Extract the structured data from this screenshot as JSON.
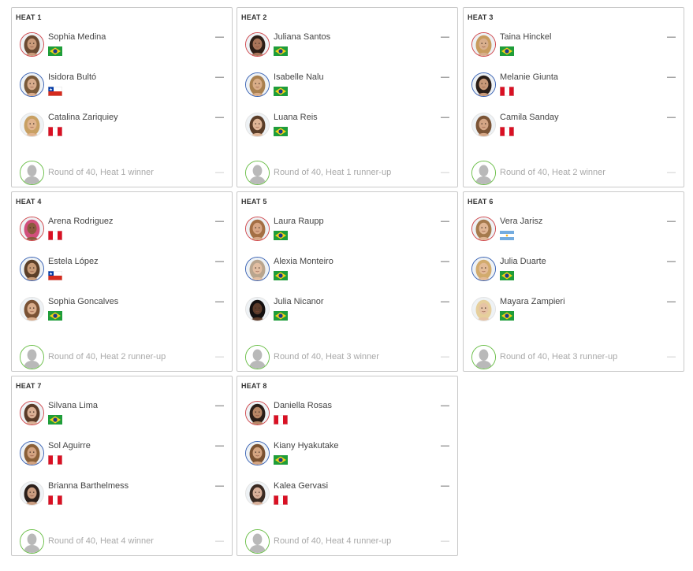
{
  "heats": [
    {
      "title": "HEAT 1",
      "athletes": [
        {
          "name": "Sophia Medina",
          "flag": "brazil-flag",
          "ring": "red",
          "score": "—",
          "skin": "#c99a7a",
          "hair": "#6b4a32"
        },
        {
          "name": "Isidora Bultó",
          "flag": "chile-flag",
          "ring": "blue",
          "score": "—",
          "skin": "#d7ab8c",
          "hair": "#7a5a3a"
        },
        {
          "name": "Catalina Zariquiey",
          "flag": "peru-flag",
          "ring": "white",
          "score": "—",
          "skin": "#e0b48e",
          "hair": "#c8a063"
        }
      ],
      "placeholder": {
        "name": "Round of 40, Heat 1 winner",
        "score": "—"
      }
    },
    {
      "title": "HEAT 2",
      "athletes": [
        {
          "name": "Juliana Santos",
          "flag": "brazil-flag",
          "ring": "red",
          "score": "—",
          "skin": "#a9755a",
          "hair": "#2d1e16"
        },
        {
          "name": "Isabelle Nalu",
          "flag": "brazil-flag",
          "ring": "blue",
          "score": "—",
          "skin": "#d9ad88",
          "hair": "#a9804f"
        },
        {
          "name": "Luana Reis",
          "flag": "brazil-flag",
          "ring": "white",
          "score": "—",
          "skin": "#deb597",
          "hair": "#5a3d28"
        }
      ],
      "placeholder": {
        "name": "Round of 40, Heat 1 runner-up",
        "score": "—"
      }
    },
    {
      "title": "HEAT 3",
      "athletes": [
        {
          "name": "Taina Hinckel",
          "flag": "brazil-flag",
          "ring": "red",
          "score": "—",
          "skin": "#d8ae8c",
          "hair": "#c89b5e"
        },
        {
          "name": "Melanie Giunta",
          "flag": "peru-flag",
          "ring": "blue",
          "score": "—",
          "skin": "#c79878",
          "hair": "#2a1e18"
        },
        {
          "name": "Camila Sanday",
          "flag": "peru-flag",
          "ring": "white",
          "score": "—",
          "skin": "#d3a585",
          "hair": "#7b5436"
        }
      ],
      "placeholder": {
        "name": "Round of 40, Heat 2 winner",
        "score": "—"
      }
    },
    {
      "title": "HEAT 4",
      "athletes": [
        {
          "name": "Arena Rodriguez",
          "flag": "peru-flag",
          "ring": "red",
          "score": "—",
          "skin": "#8a5a3e",
          "hair": "#d14f7c"
        },
        {
          "name": "Estela López",
          "flag": "chile-flag",
          "ring": "blue",
          "score": "—",
          "skin": "#c89b78",
          "hair": "#5c3f28"
        },
        {
          "name": "Sophia Goncalves",
          "flag": "brazil-flag",
          "ring": "white",
          "score": "—",
          "skin": "#d9ad8c",
          "hair": "#7a5234"
        }
      ],
      "placeholder": {
        "name": "Round of 40, Heat 2 runner-up",
        "score": "—"
      }
    },
    {
      "title": "HEAT 5",
      "athletes": [
        {
          "name": "Laura Raupp",
          "flag": "brazil-flag",
          "ring": "red",
          "score": "—",
          "skin": "#d8a684",
          "hair": "#a46f44"
        },
        {
          "name": "Alexia Monteiro",
          "flag": "brazil-flag",
          "ring": "blue",
          "score": "—",
          "skin": "#e2bea2",
          "hair": "#b9a58e"
        },
        {
          "name": "Julia Nicanor",
          "flag": "brazil-flag",
          "ring": "white",
          "score": "—",
          "skin": "#5c3b2a",
          "hair": "#141010"
        }
      ],
      "placeholder": {
        "name": "Round of 40, Heat 3 winner",
        "score": "—"
      }
    },
    {
      "title": "HEAT 6",
      "athletes": [
        {
          "name": "Vera Jarisz",
          "flag": "argentina-flag",
          "ring": "red",
          "score": "—",
          "skin": "#e0b695",
          "hair": "#a57a4d"
        },
        {
          "name": "Julia Duarte",
          "flag": "brazil-flag",
          "ring": "blue",
          "score": "—",
          "skin": "#e3bb97",
          "hair": "#d2ab6d"
        },
        {
          "name": "Mayara Zampieri",
          "flag": "brazil-flag",
          "ring": "white",
          "score": "—",
          "skin": "#e6c3a5",
          "hair": "#e6cf9c"
        }
      ],
      "placeholder": {
        "name": "Round of 40, Heat 3 runner-up",
        "score": "—"
      }
    },
    {
      "title": "HEAT 7",
      "athletes": [
        {
          "name": "Silvana Lima",
          "flag": "brazil-flag",
          "ring": "red",
          "score": "—",
          "skin": "#d9af94",
          "hair": "#5a3b28"
        },
        {
          "name": "Sol Aguirre",
          "flag": "peru-flag",
          "ring": "blue",
          "score": "—",
          "skin": "#d1a280",
          "hair": "#8a6038"
        },
        {
          "name": "Brianna Barthelmess",
          "flag": "peru-flag",
          "ring": "white",
          "score": "—",
          "skin": "#c99c80",
          "hair": "#2b1f1a"
        }
      ],
      "placeholder": {
        "name": "Round of 40, Heat 4 winner",
        "score": "—"
      }
    },
    {
      "title": "HEAT 8",
      "athletes": [
        {
          "name": "Daniella Rosas",
          "flag": "peru-flag",
          "ring": "red",
          "score": "—",
          "skin": "#b78666",
          "hair": "#2b1e18"
        },
        {
          "name": "Kiany Hyakutake",
          "flag": "brazil-flag",
          "ring": "blue",
          "score": "—",
          "skin": "#d4a582",
          "hair": "#7a5232"
        },
        {
          "name": "Kalea Gervasi",
          "flag": "peru-flag",
          "ring": "white",
          "score": "—",
          "skin": "#d8b09a",
          "hair": "#3a2a22"
        }
      ],
      "placeholder": {
        "name": "Round of 40, Heat 4 runner-up",
        "score": "—"
      }
    }
  ],
  "colors": {
    "ring_red": "#d0494e",
    "ring_blue": "#3b64b5",
    "ring_white": "#e3e3e3",
    "ring_green": "#6cc04a",
    "placeholder_silhouette": "#b9b9b9"
  }
}
